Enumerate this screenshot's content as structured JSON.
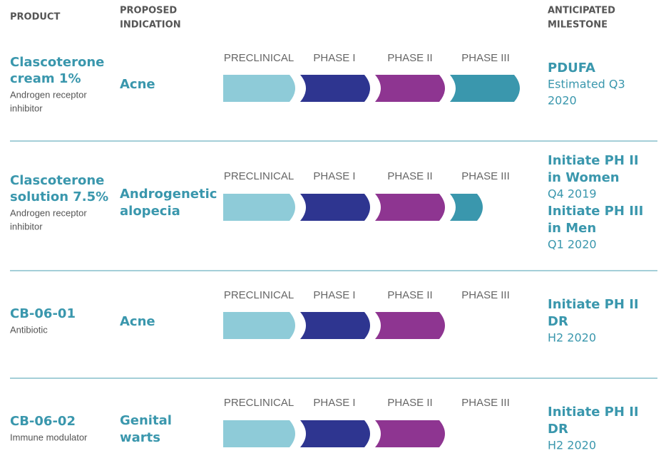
{
  "header": {
    "product": "PRODUCT",
    "indication": [
      "PROPOSED",
      "INDICATION"
    ],
    "milestone": [
      "ANTICIPATED",
      "MILESTONE"
    ]
  },
  "phases": [
    "PRECLINICAL",
    "PHASE I",
    "PHASE II",
    "PHASE III"
  ],
  "rows": [
    {
      "product": [
        "Clascoterone",
        "cream 1%"
      ],
      "description": [
        "Androgen receptor",
        "inhibitor"
      ],
      "indication": [
        "Acne"
      ],
      "milestone": [
        {
          "title": [
            "PDUFA"
          ],
          "date": [
            "Estimated Q3",
            "2020"
          ]
        }
      ]
    },
    {
      "product": [
        "Clascoterone",
        "solution 7.5%"
      ],
      "description": [
        "Androgen receptor",
        "inhibitor"
      ],
      "indication": [
        "Androgenetic",
        "alopecia"
      ],
      "milestone": [
        {
          "title": [
            "Initiate PH II",
            "in Women"
          ],
          "date": [
            "Q4 2019"
          ]
        },
        {
          "title": [
            "Initiate PH III",
            "in Men"
          ],
          "date": [
            "Q1 2020"
          ]
        }
      ]
    },
    {
      "product": [
        "CB-06-01"
      ],
      "description": [
        "Antibiotic"
      ],
      "indication": [
        "Acne"
      ],
      "milestone": [
        {
          "title": [
            "Initiate PH II",
            "DR"
          ],
          "date": [
            "H2 2020"
          ]
        }
      ]
    },
    {
      "product": [
        "CB-06-02"
      ],
      "description": [
        "Immune modulator"
      ],
      "indication": [
        "Genital",
        "warts"
      ],
      "milestone": [
        {
          "title": [
            "Initiate PH II",
            "DR"
          ],
          "date": [
            "H2 2020"
          ]
        }
      ]
    }
  ]
}
